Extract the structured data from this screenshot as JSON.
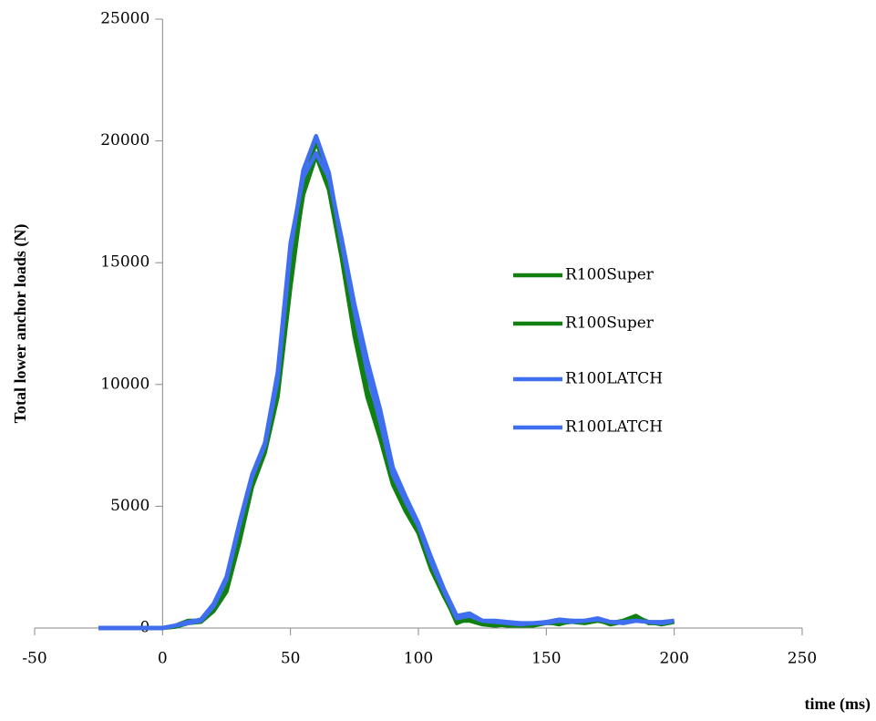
{
  "chart_data": {
    "type": "line",
    "x_label": "time (ms)",
    "y_label": "Total lower anchor loads (N)",
    "x": [
      -25,
      -20,
      -15,
      -10,
      -5,
      0,
      5,
      10,
      15,
      20,
      25,
      30,
      35,
      40,
      45,
      50,
      55,
      60,
      65,
      70,
      75,
      80,
      85,
      90,
      95,
      100,
      105,
      110,
      115,
      120,
      125,
      130,
      135,
      140,
      145,
      150,
      155,
      160,
      165,
      170,
      175,
      180,
      185,
      190,
      195,
      200
    ],
    "series": [
      {
        "name": "R100Super",
        "color": "#118011",
        "values": [
          0,
          0,
          0,
          0,
          0,
          0,
          50,
          200,
          250,
          700,
          1500,
          3500,
          5800,
          7200,
          9500,
          14000,
          18000,
          20000,
          18500,
          15500,
          12500,
          9800,
          8000,
          6000,
          5000,
          4000,
          2500,
          1400,
          200,
          400,
          200,
          150,
          100,
          100,
          100,
          200,
          200,
          250,
          200,
          300,
          200,
          300,
          500,
          200,
          200,
          300
        ]
      },
      {
        "name": "R100Super",
        "color": "#118011",
        "values": [
          0,
          0,
          0,
          0,
          0,
          0,
          100,
          300,
          300,
          800,
          1700,
          3800,
          6000,
          7400,
          10000,
          14500,
          17800,
          19400,
          18000,
          15200,
          12000,
          9500,
          7800,
          5900,
          4800,
          3900,
          2400,
          1300,
          300,
          300,
          150,
          100,
          150,
          100,
          150,
          250,
          150,
          300,
          250,
          350,
          150,
          250,
          450,
          250,
          150,
          250
        ]
      },
      {
        "name": "R100LATCH",
        "color": "#3f6ff0",
        "values": [
          0,
          0,
          0,
          0,
          0,
          0,
          100,
          200,
          300,
          900,
          2000,
          4200,
          6200,
          7500,
          10200,
          15500,
          18800,
          20200,
          18700,
          15800,
          13000,
          10500,
          8500,
          6300,
          5200,
          4200,
          2700,
          1500,
          400,
          500,
          300,
          250,
          200,
          150,
          200,
          200,
          300,
          250,
          300,
          350,
          250,
          200,
          300,
          250,
          200,
          300
        ]
      },
      {
        "name": "R100LATCH",
        "color": "#3f6ff0",
        "values": [
          0,
          0,
          0,
          0,
          0,
          0,
          100,
          250,
          350,
          1000,
          2100,
          4300,
          6300,
          7600,
          10500,
          15800,
          18500,
          19500,
          18500,
          16000,
          13300,
          11000,
          9000,
          6600,
          5400,
          4300,
          2900,
          1600,
          500,
          600,
          300,
          300,
          250,
          200,
          200,
          250,
          350,
          300,
          300,
          400,
          250,
          250,
          300,
          250,
          250,
          300
        ]
      }
    ],
    "xlim": [
      -50,
      250
    ],
    "xticks": [
      -50,
      0,
      50,
      100,
      150,
      200,
      250
    ],
    "ylim": [
      0,
      25000
    ],
    "yticks": [
      0,
      5000,
      10000,
      15000,
      20000,
      25000
    ],
    "grid": false,
    "legend": "right"
  }
}
